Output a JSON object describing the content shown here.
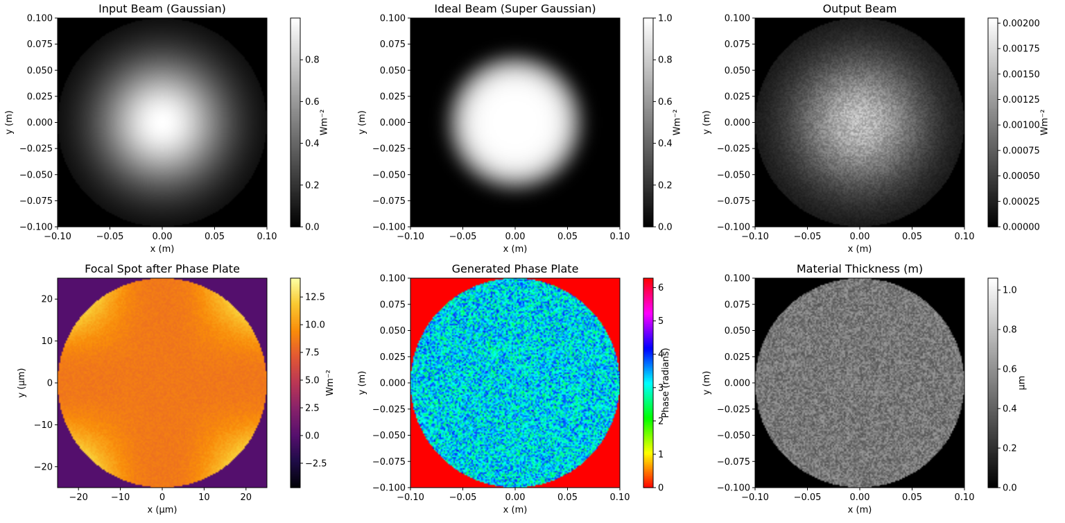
{
  "chart_data": [
    {
      "type": "heatmap",
      "title": "Input Beam (Gaussian)",
      "xlabel": "x (m)",
      "ylabel": "y (m)",
      "xlim": [
        -0.1,
        0.1
      ],
      "ylim": [
        -0.1,
        0.1
      ],
      "xticks": [
        "−0.10",
        "−0.05",
        "0.00",
        "0.05",
        "0.10"
      ],
      "yticks": [
        "0.100",
        "0.075",
        "0.050",
        "0.025",
        "0.000",
        "−0.025",
        "−0.050",
        "−0.075",
        "−0.100"
      ],
      "colormap": "gray",
      "colorbar": {
        "label": "Wm⁻²",
        "range": [
          0,
          1.0
        ],
        "ticks": [
          "0.0",
          "0.2",
          "0.4",
          "0.6",
          "0.8"
        ]
      },
      "field": "gaussian disk, aperture radius 0.1 m, peak 1.0 at center"
    },
    {
      "type": "heatmap",
      "title": "Ideal Beam (Super Gaussian)",
      "xlabel": "x (m)",
      "ylabel": "y (m)",
      "xlim": [
        -0.1,
        0.1
      ],
      "ylim": [
        -0.1,
        0.1
      ],
      "xticks": [
        "−0.10",
        "−0.05",
        "0.00",
        "0.05",
        "0.10"
      ],
      "yticks": [
        "0.100",
        "0.075",
        "0.050",
        "0.025",
        "0.000",
        "−0.025",
        "−0.050",
        "−0.075",
        "−0.100"
      ],
      "colormap": "gray",
      "colorbar": {
        "label": "Wm⁻²",
        "range": [
          0,
          1.0
        ],
        "ticks": [
          "0.0",
          "0.2",
          "0.4",
          "0.6",
          "0.8",
          "1.0"
        ]
      },
      "field": "super-gaussian flat-top, peak 1.0, radius about 0.06 m"
    },
    {
      "type": "heatmap",
      "title": "Output Beam",
      "xlabel": "x (m)",
      "ylabel": "y (m)",
      "xlim": [
        -0.1,
        0.1
      ],
      "ylim": [
        -0.1,
        0.1
      ],
      "xticks": [
        "−0.10",
        "−0.05",
        "0.00",
        "0.05",
        "0.10"
      ],
      "yticks": [
        "0.100",
        "0.075",
        "0.050",
        "0.025",
        "0.000",
        "−0.025",
        "−0.050",
        "−0.075",
        "−0.100"
      ],
      "colormap": "gray",
      "colorbar": {
        "label": "Wm⁻²",
        "range": [
          0,
          0.00205
        ],
        "ticks": [
          "0.00000",
          "0.00025",
          "0.00050",
          "0.00075",
          "0.00100",
          "0.00125",
          "0.00150",
          "0.00175",
          "0.00200"
        ]
      },
      "field": "noisy gaussian disk, peak about 0.0014 at center"
    },
    {
      "type": "heatmap",
      "title": "Focal Spot after Phase Plate",
      "xlabel": "x (μm)",
      "ylabel": "y (μm)",
      "xlim": [
        -25,
        25
      ],
      "ylim": [
        -25,
        25
      ],
      "xticks": [
        "−20",
        "−10",
        "0",
        "10",
        "20"
      ],
      "yticks": [
        "20",
        "10",
        "0",
        "−10",
        "−20"
      ],
      "colormap": "inferno",
      "colorbar": {
        "label": "Wm⁻²",
        "range": [
          -4.7,
          14.2
        ],
        "ticks": [
          "−2.5",
          "0.0",
          "2.5",
          "5.0",
          "7.5",
          "10.0",
          "12.5"
        ]
      },
      "field": "disk about 9.5 with brighter lobes near 12 toward the diagonals, background 0"
    },
    {
      "type": "heatmap",
      "title": "Generated Phase Plate",
      "xlabel": "x (m)",
      "ylabel": "y (m)",
      "xlim": [
        -0.1,
        0.1
      ],
      "ylim": [
        -0.1,
        0.1
      ],
      "xticks": [
        "−0.10",
        "−0.05",
        "0.00",
        "0.05",
        "0.10"
      ],
      "yticks": [
        "0.100",
        "0.075",
        "0.050",
        "0.025",
        "0.000",
        "−0.025",
        "−0.050",
        "−0.075",
        "−0.100"
      ],
      "colormap": "hsv",
      "colorbar": {
        "label": "Phase (radians)",
        "range": [
          0,
          6.283
        ],
        "ticks": [
          "0",
          "1",
          "2",
          "3",
          "4",
          "5",
          "6"
        ]
      },
      "field": "random phase about 2.5 to 4 inside disk, 0 outside"
    },
    {
      "type": "heatmap",
      "title": "Material Thickness (m)",
      "xlabel": "x (m)",
      "ylabel": "y (m)",
      "xlim": [
        -0.1,
        0.1
      ],
      "ylim": [
        -0.1,
        0.1
      ],
      "xticks": [
        "−0.10",
        "−0.05",
        "0.00",
        "0.05",
        "0.10"
      ],
      "yticks": [
        "0.100",
        "0.075",
        "0.050",
        "0.025",
        "0.000",
        "−0.025",
        "−0.050",
        "−0.075",
        "−0.100"
      ],
      "colormap": "gray",
      "colorbar": {
        "label": "μm",
        "range": [
          0,
          1.06
        ],
        "ticks": [
          "0.0",
          "0.2",
          "0.4",
          "0.6",
          "0.8",
          "1.0"
        ]
      },
      "field": "random thickness about 0.5 inside disk, 0 outside"
    }
  ]
}
